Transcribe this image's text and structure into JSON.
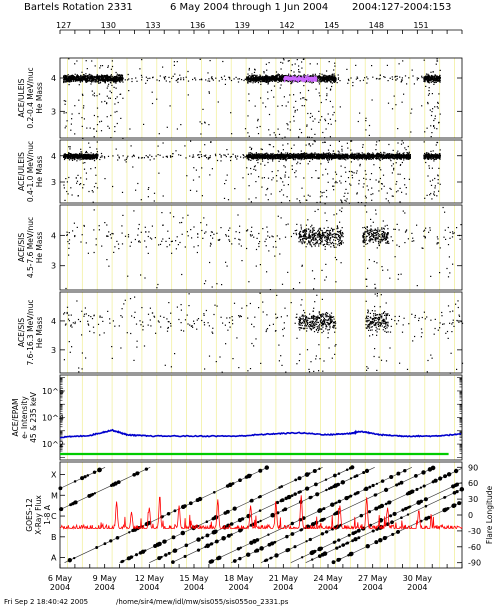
{
  "header": {
    "title_left": "Bartels Rotation 2331",
    "title_mid": "6 May 2004 through 1 Jun 2004",
    "title_right": "2004:127-2004:153"
  },
  "footer": {
    "timestamp": "Fri Sep  2 18:40:42 2005",
    "path": "/home/sir4/mew/idl/mw/sis055/sis055oo_2331.ps"
  },
  "chart_data": {
    "type": "scatter",
    "shared_x": {
      "unit": "day of year 2004",
      "range": [
        127,
        154
      ],
      "top_tick_labels": [
        "127",
        "130",
        "133",
        "136",
        "139",
        "142",
        "145",
        "148",
        "151"
      ],
      "bottom_tick_labels": [
        {
          "date": "6 May",
          "year": "2004"
        },
        {
          "date": "9 May",
          "year": "2004"
        },
        {
          "date": "12 May",
          "year": "2004"
        },
        {
          "date": "15 May",
          "year": "2004"
        },
        {
          "date": "18 May",
          "year": "2004"
        },
        {
          "date": "21 May",
          "year": "2004"
        },
        {
          "date": "24 May",
          "year": "2004"
        },
        {
          "date": "27 May",
          "year": "2004"
        },
        {
          "date": "30 May",
          "year": "2004"
        }
      ]
    },
    "panels": [
      {
        "ylabel_lines": [
          "ACE/ULEIS",
          "0.2-0.4 MeV/nuc",
          "He Mass"
        ],
        "y_ticks": [
          "4",
          "3"
        ],
        "ylim": [
          2.2,
          4.6
        ],
        "mass_band_center": 4.0,
        "active_intervals_doy": [
          [
            127.2,
            131.2
          ],
          [
            139.5,
            145.5
          ],
          [
            151.4,
            152.5
          ]
        ],
        "weak_intervals_doy": [
          [
            131.2,
            139.5
          ],
          [
            145.5,
            151.4
          ]
        ],
        "dense_intervals_doy": [
          [
            142.0,
            144.2
          ]
        ],
        "dense_color": "#cc66ff"
      },
      {
        "ylabel_lines": [
          "ACE/ULEIS",
          "0.4-1.0 MeV/nuc",
          "He Mass"
        ],
        "y_ticks": [
          "4",
          "3"
        ],
        "ylim": [
          2.2,
          4.6
        ],
        "mass_band_center": 4.0,
        "active_intervals_doy": [
          [
            127.2,
            129.5
          ],
          [
            139.5,
            150.5
          ],
          [
            151.4,
            152.5
          ]
        ],
        "weak_intervals_doy": [
          [
            129.5,
            139.5
          ]
        ],
        "dense_intervals_doy": []
      },
      {
        "ylabel_lines": [
          "ACE/SIS",
          "4.5-7.6 MeV/nuc",
          "He Mass"
        ],
        "y_ticks": [
          "4",
          "3"
        ],
        "ylim": [
          2.2,
          5.0
        ],
        "mass_band_center": 4.0,
        "active_intervals_doy": [
          [
            143.0,
            146.0
          ],
          [
            147.3,
            149.0
          ]
        ],
        "weak_intervals_doy": [
          [
            127.2,
            143.0
          ],
          [
            149.0,
            154.0
          ]
        ],
        "dense_intervals_doy": []
      },
      {
        "ylabel_lines": [
          "ACE/SIS",
          "7.6-16.3 MeV/nuc",
          "He Mass"
        ],
        "y_ticks": [
          "4",
          "3"
        ],
        "ylim": [
          2.2,
          5.0
        ],
        "mass_band_center": 4.0,
        "active_intervals_doy": [
          [
            143.0,
            145.5
          ],
          [
            147.5,
            149.0
          ]
        ],
        "weak_intervals_doy": [
          [
            127.2,
            143.0
          ],
          [
            149.0,
            154.0
          ]
        ],
        "dense_intervals_doy": []
      }
    ],
    "epam": {
      "ylabel_lines": [
        "ACE/EPAM",
        "e- Intensity",
        "45 & 235 keV"
      ],
      "log_scale": true,
      "y_tick_labels": [
        "10^6",
        "10^4",
        "10^2"
      ],
      "y_tick_values_log10": [
        6,
        4,
        2
      ],
      "ylim_log10": [
        0.8,
        7.2
      ],
      "series": [
        {
          "color": "#0000cc",
          "x": [
            127,
            129,
            130.5,
            131.5,
            133,
            136,
            139,
            141,
            143,
            145,
            146.5,
            147.2,
            148.5,
            150,
            152,
            154
          ],
          "log10_values": [
            2.5,
            2.65,
            3.05,
            2.7,
            2.6,
            2.6,
            2.6,
            2.75,
            2.85,
            2.7,
            2.8,
            2.95,
            2.7,
            2.6,
            2.6,
            2.75
          ]
        },
        {
          "color": "#00cc00",
          "x": [
            127,
            154
          ],
          "log10_values": [
            1.25,
            1.25
          ]
        }
      ]
    },
    "goes": {
      "ylabel_lines": [
        "GOES-12",
        "X-Ray Flux",
        "1-8 A"
      ],
      "left_class_labels": [
        "X",
        "M",
        "C",
        "B",
        "A"
      ],
      "left_ylim_log10": [
        -8.5,
        -3.4
      ],
      "right_axis_label": "Flare Longitude",
      "right_tick_labels": [
        "90",
        "60",
        "30",
        "0",
        "-30",
        "-60",
        "-90"
      ],
      "right_ylim": [
        -100,
        100
      ],
      "flux_color": "#ff0000",
      "flux_base_log10": -6.6,
      "flux_peaks": [
        {
          "doy": 130.8,
          "log10": -5.3
        },
        {
          "doy": 131.8,
          "log10": -5.8
        },
        {
          "doy": 133.0,
          "log10": -5.6
        },
        {
          "doy": 133.7,
          "log10": -5.0
        },
        {
          "doy": 135.0,
          "log10": -5.5
        },
        {
          "doy": 137.6,
          "log10": -5.2
        },
        {
          "doy": 139.8,
          "log10": -5.5
        },
        {
          "doy": 141.5,
          "log10": -5.4
        },
        {
          "doy": 143.2,
          "log10": -5.0
        },
        {
          "doy": 145.8,
          "log10": -5.5
        },
        {
          "doy": 147.6,
          "log10": -5.1
        },
        {
          "doy": 149.0,
          "log10": -5.6
        },
        {
          "doy": 151.1,
          "log10": -5.7
        }
      ],
      "rotation_tracks": [
        {
          "start_doy": 127.3,
          "start_lon": -90
        },
        {
          "start_doy": 131.0,
          "start_lon": -90
        },
        {
          "start_doy": 133.0,
          "start_lon": -90
        },
        {
          "start_doy": 134.5,
          "start_lon": -90
        },
        {
          "start_doy": 137.0,
          "start_lon": -90
        },
        {
          "start_doy": 138.5,
          "start_lon": -90
        },
        {
          "start_doy": 140.5,
          "start_lon": -90
        },
        {
          "start_doy": 142.5,
          "start_lon": -90
        },
        {
          "start_doy": 143.5,
          "start_lon": -90
        },
        {
          "start_doy": 145.3,
          "start_lon": -90
        },
        {
          "start_doy": 127.0,
          "start_lon": 50
        },
        {
          "start_doy": 127.0,
          "start_lon": 10
        }
      ],
      "track_slope_deg_per_day": 13.2
    }
  }
}
